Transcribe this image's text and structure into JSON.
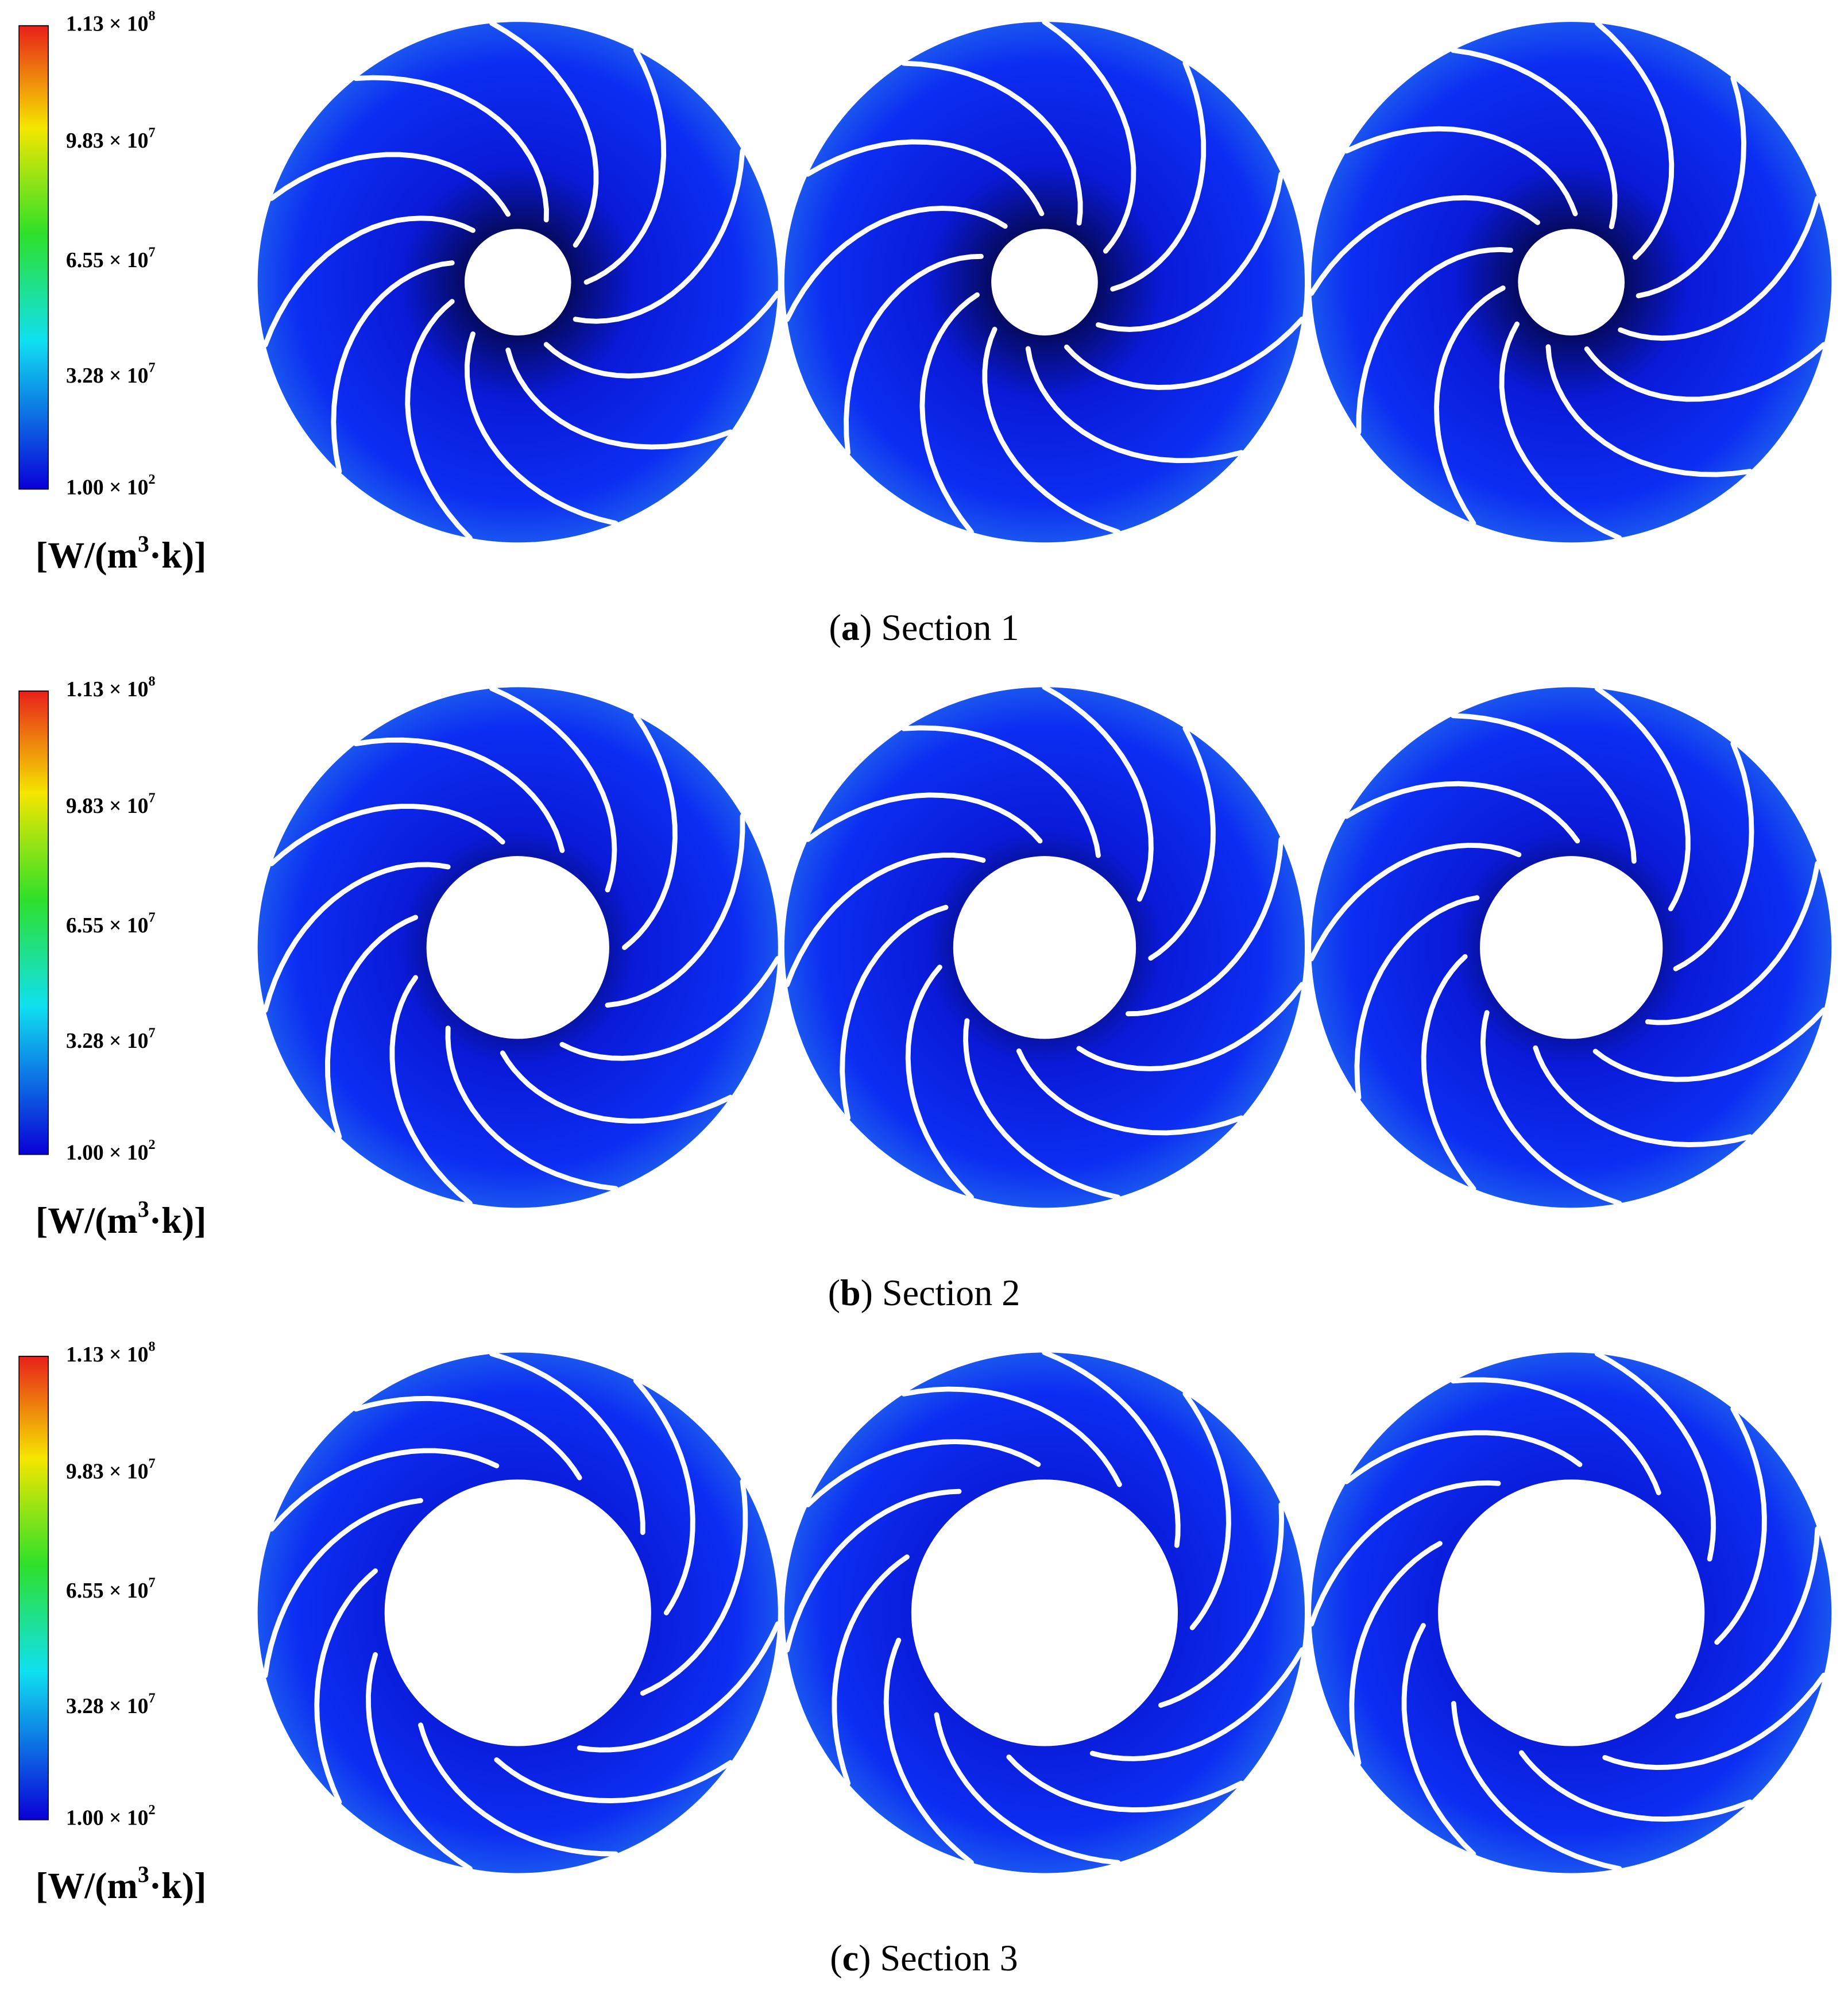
{
  "panels": [
    {
      "colorbar": {
        "ticks": [
          {
            "mantissa": "1.13 × 10",
            "exponent": "8"
          },
          {
            "mantissa": "9.83 × 10",
            "exponent": "7"
          },
          {
            "mantissa": "6.55 × 10",
            "exponent": "7"
          },
          {
            "mantissa": "3.28 × 10",
            "exponent": "7"
          },
          {
            "mantissa": "1.00 × 10",
            "exponent": "2"
          }
        ],
        "unit": {
          "before": "[W/(m",
          "exponent": "3",
          "after": "·k)]"
        }
      },
      "caption": {
        "letter": "a",
        "text": "Section 1"
      }
    },
    {
      "colorbar": {
        "ticks": [
          {
            "mantissa": "1.13 × 10",
            "exponent": "8"
          },
          {
            "mantissa": "9.83 × 10",
            "exponent": "7"
          },
          {
            "mantissa": "6.55 × 10",
            "exponent": "7"
          },
          {
            "mantissa": "3.28 × 10",
            "exponent": "7"
          },
          {
            "mantissa": "1.00 × 10",
            "exponent": "2"
          }
        ],
        "unit": {
          "before": "[W/(m",
          "exponent": "3",
          "after": "·k)]"
        }
      },
      "caption": {
        "letter": "b",
        "text": "Section 2"
      }
    },
    {
      "colorbar": {
        "ticks": [
          {
            "mantissa": "1.13 × 10",
            "exponent": "8"
          },
          {
            "mantissa": "9.83 × 10",
            "exponent": "7"
          },
          {
            "mantissa": "6.55 × 10",
            "exponent": "7"
          },
          {
            "mantissa": "3.28 × 10",
            "exponent": "7"
          },
          {
            "mantissa": "1.00 × 10",
            "exponent": "2"
          }
        ],
        "unit": {
          "before": "[W/(m",
          "exponent": "3",
          "after": "·k)]"
        }
      },
      "caption": {
        "letter": "c",
        "text": "Section 3"
      }
    }
  ]
}
